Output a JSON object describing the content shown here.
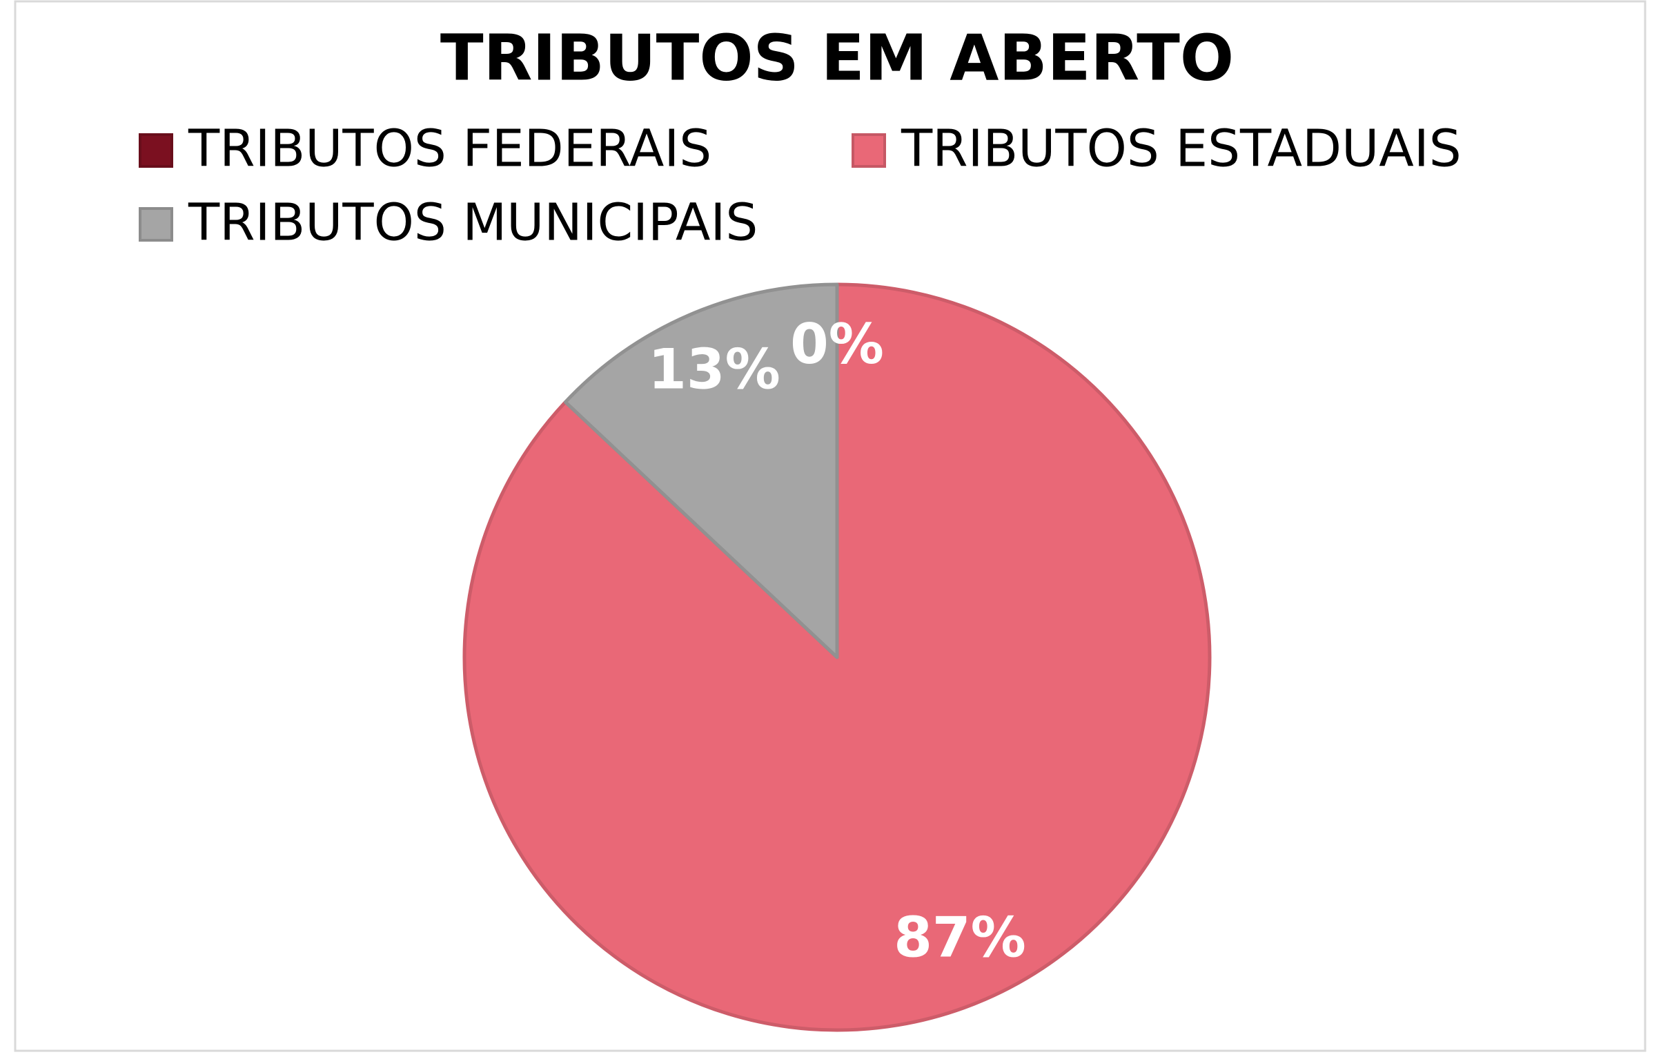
{
  "chart_data": {
    "type": "pie",
    "title": "TRIBUTOS EM ABERTO",
    "categories": [
      "TRIBUTOS FEDERAIS",
      "TRIBUTOS ESTADUAIS",
      "TRIBUTOS MUNICIPAIS"
    ],
    "values": [
      0,
      87,
      13
    ],
    "value_labels": [
      "0%",
      "87%",
      "13%"
    ],
    "colors": [
      "#7b1020",
      "#e96877",
      "#a5a5a5"
    ],
    "legend": "top"
  }
}
